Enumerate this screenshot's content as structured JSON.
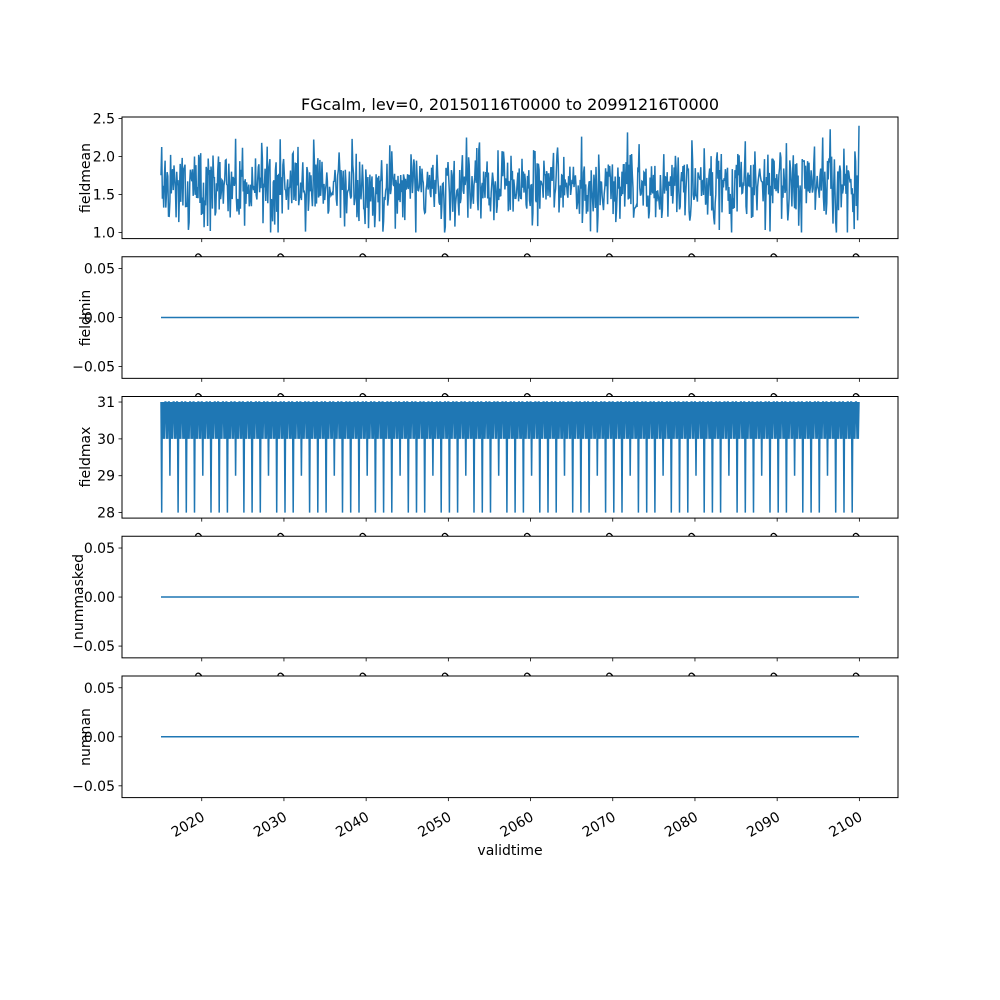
{
  "title": "FGcalm, lev=0, 20150116T0000 to 20991216T0000",
  "xlabel": "validtime",
  "chart_data": {
    "type": "line",
    "title": "FGcalm, lev=0, 20150116T0000 to 20991216T0000",
    "xlabel": "validtime",
    "line_color": "#1f77b4",
    "grid": false,
    "legend": "none",
    "x_tick_values": [
      2020,
      2030,
      2040,
      2050,
      2060,
      2070,
      2080,
      2090,
      2100
    ],
    "x_tick_labels": [
      "2020",
      "2030",
      "2040",
      "2050",
      "2060",
      "2070",
      "2080",
      "2090",
      "2100"
    ],
    "xlim": [
      2010.3,
      2104.7
    ],
    "x_start": 2015.042,
    "x_end": 2099.958,
    "n_points": 1020,
    "cadence": "monthly samples from 2015-01-16 to 2099-12-16",
    "subplots": [
      {
        "ylabel": "fieldmean",
        "ylim": [
          0.92,
          2.52
        ],
        "yticks": [
          1.0,
          1.5,
          2.0,
          2.5
        ],
        "ytick_labels": [
          "1.0",
          "1.5",
          "2.0",
          "2.5"
        ],
        "series": {
          "kind": "noise",
          "mean": 1.6,
          "spread": 0.45,
          "clip_min": 1.0,
          "clip_max": 2.45,
          "seed": 20150116
        },
        "summary": "noisy monthly fieldmean, values ~1.0 to 2.45, mean approx 1.6"
      },
      {
        "ylabel": "fieldmin",
        "ylim": [
          -0.062,
          0.062
        ],
        "yticks": [
          -0.05,
          0.0,
          0.05
        ],
        "ytick_labels": [
          "−0.05",
          "0.00",
          "0.05"
        ],
        "series": {
          "kind": "constant",
          "value": 0.0
        },
        "summary": "constant 0.00 for all timestamps"
      },
      {
        "ylabel": "fieldmax",
        "ylim": [
          27.85,
          31.15
        ],
        "yticks": [
          28,
          29,
          30,
          31
        ],
        "ytick_labels": [
          "28",
          "29",
          "30",
          "31"
        ],
        "series": {
          "kind": "days_in_month",
          "start_year": 2015,
          "end_year": 2099
        },
        "summary": "days in each month: alternates 30/31, dips to 28 each February and 29 in leap-year Februaries"
      },
      {
        "ylabel": "nummasked",
        "ylim": [
          -0.062,
          0.062
        ],
        "yticks": [
          -0.05,
          0.0,
          0.05
        ],
        "ytick_labels": [
          "−0.05",
          "0.00",
          "0.05"
        ],
        "series": {
          "kind": "constant",
          "value": 0.0
        },
        "summary": "constant 0.00 for all timestamps"
      },
      {
        "ylabel": "numnan",
        "ylim": [
          -0.062,
          0.062
        ],
        "yticks": [
          -0.05,
          0.0,
          0.05
        ],
        "ytick_labels": [
          "−0.05",
          "0.00",
          "0.05"
        ],
        "series": {
          "kind": "constant",
          "value": 0.0
        },
        "summary": "constant 0.00 for all timestamps"
      }
    ]
  }
}
